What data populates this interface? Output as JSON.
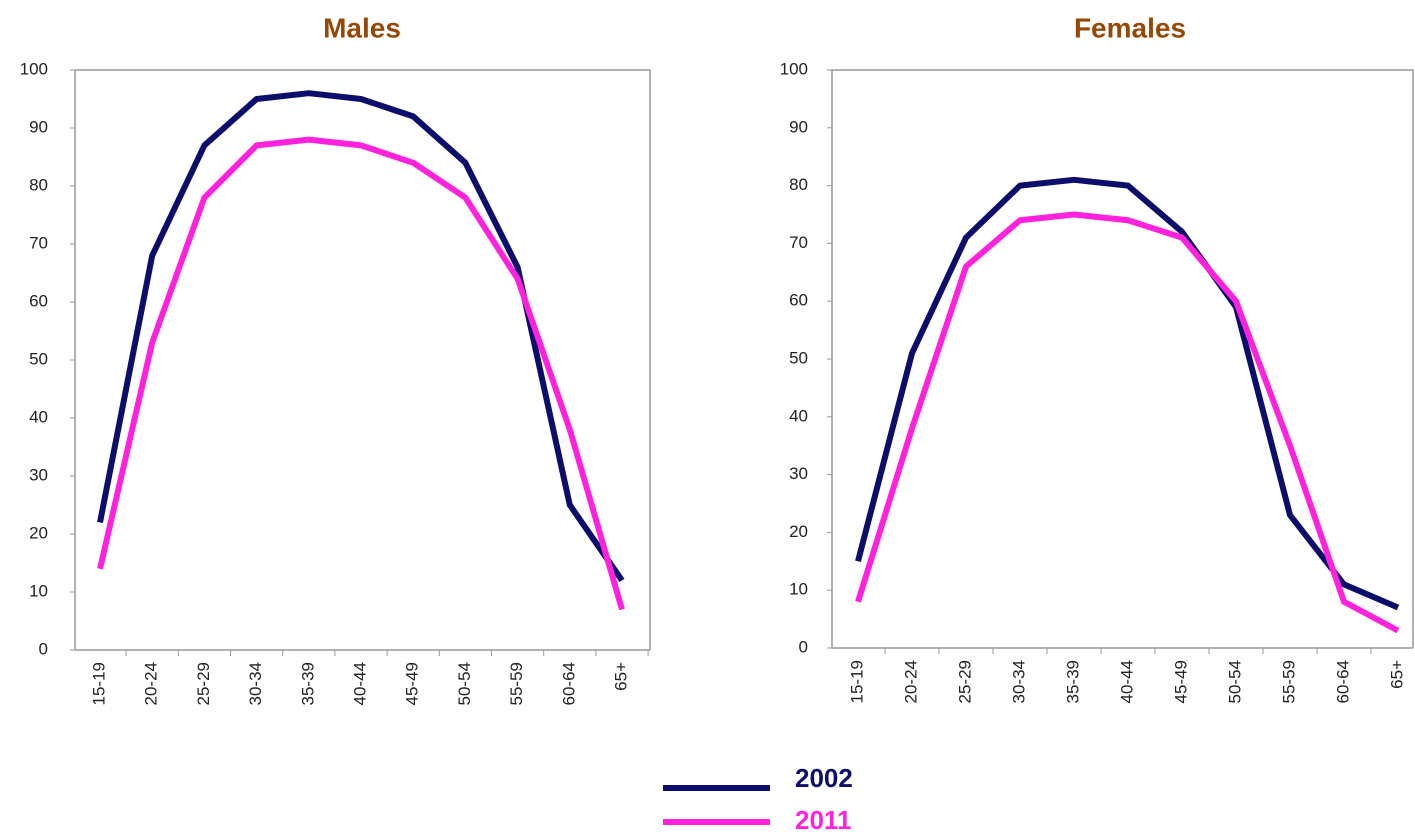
{
  "chart_data": [
    {
      "type": "line",
      "title": "Males",
      "categories": [
        "15-19",
        "20-24",
        "25-29",
        "30-34",
        "35-39",
        "40-44",
        "45-49",
        "50-54",
        "55-59",
        "60-64",
        "65+"
      ],
      "series": [
        {
          "name": "2002",
          "color": "#0d0d6b",
          "values": [
            22,
            68,
            87,
            95,
            96,
            95,
            92,
            84,
            66,
            25,
            12
          ]
        },
        {
          "name": "2011",
          "color": "#ff22dd",
          "values": [
            14,
            53,
            78,
            87,
            88,
            87,
            84,
            78,
            64,
            38,
            7
          ]
        }
      ],
      "ylim": [
        0,
        100
      ],
      "yticks": [
        0,
        10,
        20,
        30,
        40,
        50,
        60,
        70,
        80,
        90,
        100
      ]
    },
    {
      "type": "line",
      "title": "Females",
      "categories": [
        "15-19",
        "20-24",
        "25-29",
        "30-34",
        "35-39",
        "40-44",
        "45-49",
        "50-54",
        "55-59",
        "60-64",
        "65+"
      ],
      "series": [
        {
          "color": "#0d0d6b",
          "values": [
            15,
            51,
            71,
            80,
            81,
            80,
            72,
            59,
            23,
            11,
            7
          ]
        },
        {
          "color": "#ff22dd",
          "values": [
            8,
            38,
            66,
            74,
            75,
            74,
            71,
            60,
            35,
            8,
            3
          ]
        }
      ],
      "ylim": [
        0,
        100
      ],
      "yticks": [
        0,
        10,
        20,
        30,
        40,
        50,
        60,
        70,
        80,
        90,
        100
      ]
    }
  ]
}
